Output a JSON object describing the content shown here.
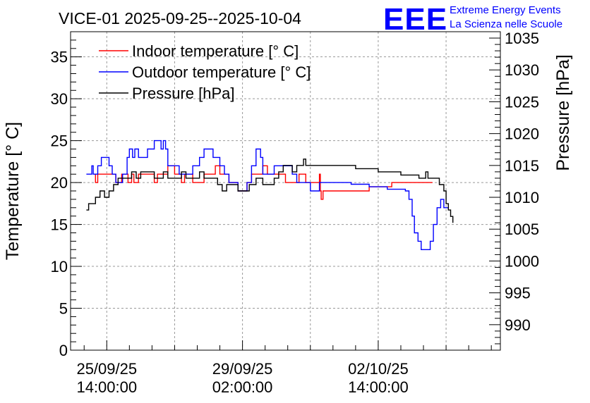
{
  "chart_data": {
    "type": "line",
    "title": "VICE-01 2025-09-25--2025-10-04",
    "ylabel": "Temperature [° C]",
    "y2label": "Pressure [hPa]",
    "ylim": [
      0,
      38
    ],
    "y2lim": [
      986,
      1036
    ],
    "xlim": [
      -0.8,
      8.7
    ],
    "xticks": [
      {
        "x": 0,
        "label_date": "25/09/25",
        "label_time": "14:00:00"
      },
      {
        "x": 3,
        "label_date": "29/09/25",
        "label_time": "02:00:00"
      },
      {
        "x": 6,
        "label_date": "02/10/25",
        "label_time": "14:00:00"
      }
    ],
    "yticks": [
      0,
      5,
      10,
      15,
      20,
      25,
      30,
      35
    ],
    "y2ticks": [
      990,
      995,
      1000,
      1005,
      1010,
      1015,
      1020,
      1025,
      1030,
      1035
    ],
    "grid": true,
    "legend_position": "top-left",
    "series": [
      {
        "name": "Indoor temperature [° C]",
        "color": "#ff0000",
        "axis": "left",
        "points": [
          [
            -0.27,
            21
          ],
          [
            -0.25,
            20
          ],
          [
            -0.2,
            21
          ],
          [
            -0.12,
            21
          ],
          [
            0,
            21
          ],
          [
            0.13,
            21
          ],
          [
            0.2,
            20
          ],
          [
            0.3,
            20
          ],
          [
            0.33,
            21
          ],
          [
            0.42,
            21
          ],
          [
            0.47,
            20
          ],
          [
            0.55,
            21
          ],
          [
            0.6,
            20
          ],
          [
            0.7,
            21
          ],
          [
            0.85,
            21
          ],
          [
            1.0,
            21
          ],
          [
            1.05,
            20
          ],
          [
            1.12,
            21
          ],
          [
            1.25,
            21
          ],
          [
            1.35,
            22
          ],
          [
            1.45,
            22
          ],
          [
            1.5,
            21
          ],
          [
            1.6,
            21
          ],
          [
            1.65,
            20
          ],
          [
            1.72,
            21
          ],
          [
            1.85,
            21
          ],
          [
            1.9,
            20
          ],
          [
            2.05,
            20
          ],
          [
            2.15,
            21
          ],
          [
            2.3,
            21
          ],
          [
            2.4,
            22
          ],
          [
            2.5,
            21
          ],
          [
            2.6,
            21
          ],
          [
            2.7,
            20
          ],
          [
            2.8,
            20
          ],
          [
            2.9,
            19
          ],
          [
            3.0,
            19
          ],
          [
            3.1,
            20
          ],
          [
            3.2,
            21
          ],
          [
            3.35,
            21
          ],
          [
            3.45,
            22
          ],
          [
            3.55,
            21
          ],
          [
            3.65,
            21
          ],
          [
            3.8,
            21
          ],
          [
            3.95,
            20
          ],
          [
            4.1,
            20
          ],
          [
            4.25,
            21
          ],
          [
            4.4,
            20
          ],
          [
            4.55,
            20
          ],
          [
            4.7,
            21
          ],
          [
            4.72,
            19
          ],
          [
            4.74,
            18
          ],
          [
            4.78,
            19
          ],
          [
            5.3,
            19
          ],
          [
            5.8,
            19.5
          ],
          [
            6.3,
            20
          ],
          [
            6.8,
            20
          ],
          [
            7.2,
            20
          ]
        ]
      },
      {
        "name": "Outdoor temperature [° C]",
        "color": "#0000ff",
        "axis": "left",
        "points": [
          [
            -0.45,
            21
          ],
          [
            -0.35,
            21
          ],
          [
            -0.33,
            22
          ],
          [
            -0.3,
            21
          ],
          [
            -0.25,
            21
          ],
          [
            -0.2,
            22
          ],
          [
            -0.12,
            23
          ],
          [
            0.0,
            23
          ],
          [
            0.05,
            22
          ],
          [
            0.12,
            21
          ],
          [
            0.2,
            20
          ],
          [
            0.3,
            20
          ],
          [
            0.35,
            21
          ],
          [
            0.45,
            23
          ],
          [
            0.5,
            24
          ],
          [
            0.57,
            23
          ],
          [
            0.62,
            24
          ],
          [
            0.7,
            23
          ],
          [
            0.8,
            23
          ],
          [
            0.9,
            24
          ],
          [
            1.0,
            24
          ],
          [
            1.05,
            25
          ],
          [
            1.15,
            25
          ],
          [
            1.2,
            24
          ],
          [
            1.25,
            25
          ],
          [
            1.3,
            24
          ],
          [
            1.35,
            22
          ],
          [
            1.5,
            22
          ],
          [
            1.6,
            21
          ],
          [
            1.75,
            21
          ],
          [
            1.9,
            22
          ],
          [
            2.0,
            22
          ],
          [
            2.05,
            23
          ],
          [
            2.1,
            23
          ],
          [
            2.15,
            24
          ],
          [
            2.3,
            24
          ],
          [
            2.35,
            23
          ],
          [
            2.45,
            23
          ],
          [
            2.5,
            22
          ],
          [
            2.6,
            21
          ],
          [
            2.7,
            20
          ],
          [
            2.8,
            20
          ],
          [
            2.9,
            19
          ],
          [
            3.0,
            19
          ],
          [
            3.1,
            20
          ],
          [
            3.2,
            22
          ],
          [
            3.3,
            24
          ],
          [
            3.4,
            23
          ],
          [
            3.45,
            21
          ],
          [
            3.55,
            21
          ],
          [
            3.7,
            22
          ],
          [
            3.85,
            22
          ],
          [
            4.0,
            22
          ],
          [
            4.1,
            21
          ],
          [
            4.2,
            20
          ],
          [
            4.3,
            20
          ],
          [
            4.4,
            20
          ],
          [
            4.5,
            19
          ],
          [
            4.6,
            19
          ],
          [
            4.7,
            20
          ],
          [
            5.0,
            20
          ],
          [
            5.4,
            19.8
          ],
          [
            5.8,
            19.5
          ],
          [
            6.2,
            19.2
          ],
          [
            6.6,
            19
          ],
          [
            6.68,
            18
          ],
          [
            6.75,
            16
          ],
          [
            6.8,
            14
          ],
          [
            6.88,
            13
          ],
          [
            6.95,
            12
          ],
          [
            7.1,
            12
          ],
          [
            7.15,
            13
          ],
          [
            7.22,
            15
          ],
          [
            7.3,
            17
          ],
          [
            7.38,
            18
          ],
          [
            7.45,
            17
          ],
          [
            7.55,
            17
          ]
        ]
      },
      {
        "name": "Pressure [hPa]",
        "color": "#000000",
        "axis": "right",
        "points": [
          [
            -0.45,
            1008
          ],
          [
            -0.4,
            1009
          ],
          [
            -0.3,
            1009
          ],
          [
            -0.25,
            1010
          ],
          [
            -0.15,
            1011
          ],
          [
            -0.1,
            1011
          ],
          [
            -0.05,
            1010
          ],
          [
            0.05,
            1011
          ],
          [
            0.15,
            1012
          ],
          [
            0.25,
            1013
          ],
          [
            0.35,
            1013
          ],
          [
            0.45,
            1013
          ],
          [
            0.55,
            1014
          ],
          [
            0.65,
            1013
          ],
          [
            0.75,
            1014
          ],
          [
            0.85,
            1014
          ],
          [
            0.95,
            1014
          ],
          [
            1.05,
            1013
          ],
          [
            1.15,
            1013
          ],
          [
            1.25,
            1014
          ],
          [
            1.35,
            1013
          ],
          [
            1.45,
            1013
          ],
          [
            1.55,
            1013
          ],
          [
            1.65,
            1014
          ],
          [
            1.75,
            1013
          ],
          [
            1.85,
            1013
          ],
          [
            1.95,
            1013
          ],
          [
            2.05,
            1014
          ],
          [
            2.15,
            1013
          ],
          [
            2.3,
            1013
          ],
          [
            2.45,
            1012
          ],
          [
            2.55,
            1011
          ],
          [
            2.65,
            1012
          ],
          [
            2.8,
            1012
          ],
          [
            2.9,
            1011
          ],
          [
            3.0,
            1011
          ],
          [
            3.15,
            1012
          ],
          [
            3.3,
            1013
          ],
          [
            3.45,
            1012
          ],
          [
            3.6,
            1012
          ],
          [
            3.7,
            1013
          ],
          [
            3.8,
            1014
          ],
          [
            3.9,
            1015
          ],
          [
            4.0,
            1015
          ],
          [
            4.1,
            1014
          ],
          [
            4.2,
            1015
          ],
          [
            4.3,
            1015
          ],
          [
            4.35,
            1016
          ],
          [
            4.4,
            1015
          ],
          [
            5.0,
            1015
          ],
          [
            5.5,
            1014.5
          ],
          [
            6.0,
            1014
          ],
          [
            6.5,
            1013.5
          ],
          [
            6.9,
            1013
          ],
          [
            7.0,
            1013
          ],
          [
            7.05,
            1014
          ],
          [
            7.1,
            1013
          ],
          [
            7.25,
            1013
          ],
          [
            7.35,
            1012
          ],
          [
            7.45,
            1011
          ],
          [
            7.5,
            1009
          ],
          [
            7.55,
            1008
          ],
          [
            7.6,
            1007
          ],
          [
            7.65,
            1006
          ]
        ]
      }
    ]
  },
  "header": {
    "logo_text": "EEE",
    "org_line1": "Extreme Energy Events",
    "org_line2": "La Scienza nelle Scuole"
  },
  "colors": {
    "logo": "#0000ff",
    "axis": "#000000",
    "grid": "#999999"
  }
}
